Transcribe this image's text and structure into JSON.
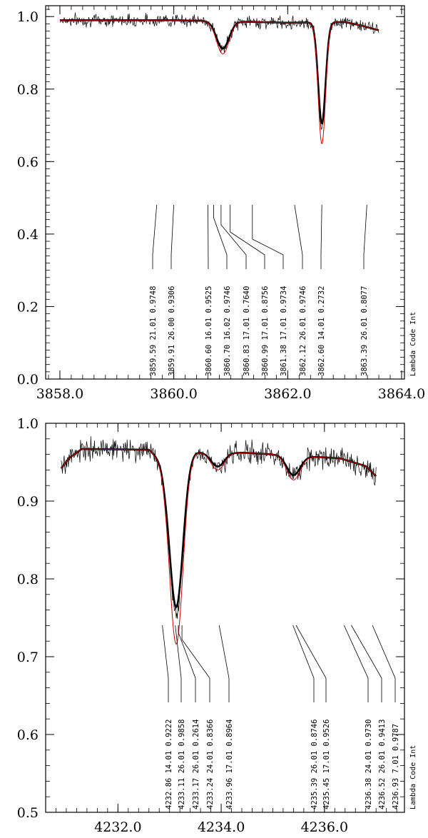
{
  "chart_data": [
    {
      "type": "line",
      "side_label": "Lambda Code Int",
      "xlim": [
        3857.75,
        3864.05
      ],
      "ylim": [
        0.0,
        1.03
      ],
      "xticks": [
        "3858.0",
        "3860.0",
        "3862.0",
        "3864.0"
      ],
      "yticks": [
        "0.0",
        "0.2",
        "0.4",
        "0.6",
        "0.8",
        "1.0"
      ],
      "x_range": [
        3858.0,
        3863.6
      ],
      "continuum": [
        [
          3858.0,
          0.99
        ],
        [
          3860.0,
          0.99
        ],
        [
          3862.0,
          0.983
        ],
        [
          3863.0,
          0.985
        ],
        [
          3863.3,
          0.975
        ],
        [
          3863.6,
          0.962
        ]
      ],
      "dips": [
        {
          "center": 3860.86,
          "depth": 0.075,
          "width": 0.11
        },
        {
          "center": 3862.6,
          "depth": 0.28,
          "width": 0.065
        }
      ],
      "series": [
        {
          "values_from": "dips",
          "depth_scale": 1.0
        },
        {
          "values_from": "dips",
          "depth_scale": 1.0
        },
        {
          "values_from": "dips",
          "depth_scale": 1.2
        }
      ],
      "line_labels": [
        {
          "x": 3859.7,
          "text": "3859.59  21.01  0.9748"
        },
        {
          "x": 3860.0,
          "text": "3859.91  26.00  0.9306"
        },
        {
          "x": 3860.6,
          "text": "3860.60  16.01  0.9525"
        },
        {
          "x": 3860.7,
          "text": "3860.70  16.02  0.9746"
        },
        {
          "x": 3860.83,
          "text": "3860.83  17.01  0.7640"
        },
        {
          "x": 3860.99,
          "text": "3860.99  17.01  0.8756"
        },
        {
          "x": 3861.38,
          "text": "3861.38  17.01  0.9734"
        },
        {
          "x": 3862.12,
          "text": "3862.12  26.01  0.9746"
        },
        {
          "x": 3862.6,
          "text": "3862.60  14.01  0.2732"
        },
        {
          "x": 3863.39,
          "text": "3863.39  26.01  0.8077"
        }
      ]
    },
    {
      "type": "line",
      "side_label": "Lambda Code Int",
      "xlim": [
        4230.6,
        4237.55
      ],
      "ylim": [
        0.5,
        1.0
      ],
      "xticks": [
        "4232.0",
        "4234.0",
        "4236.0"
      ],
      "yticks": [
        "0.5",
        "0.6",
        "0.7",
        "0.8",
        "0.9",
        "1.0"
      ],
      "x_range": [
        4230.9,
        4237.0
      ],
      "continuum": [
        [
          4230.9,
          0.942
        ],
        [
          4231.05,
          0.955
        ],
        [
          4231.3,
          0.967
        ],
        [
          4232.6,
          0.966
        ],
        [
          4232.9,
          0.948
        ],
        [
          4233.5,
          0.963
        ],
        [
          4234.5,
          0.962
        ],
        [
          4235.5,
          0.958
        ],
        [
          4236.3,
          0.955
        ],
        [
          4236.8,
          0.945
        ],
        [
          4237.0,
          0.932
        ]
      ],
      "dips": [
        {
          "center": 4233.13,
          "depth": 0.19,
          "width": 0.13
        },
        {
          "center": 4233.93,
          "depth": 0.018,
          "width": 0.13
        },
        {
          "center": 4235.4,
          "depth": 0.025,
          "width": 0.13
        }
      ],
      "series": [
        {
          "values_from": "dips",
          "depth_scale": 1.0
        },
        {
          "values_from": "dips",
          "depth_scale": 1.0
        },
        {
          "values_from": "dips",
          "depth_scale": 1.25
        }
      ],
      "line_labels": [
        {
          "x": 4232.86,
          "text": "4232.86  14.01  0.9222"
        },
        {
          "x": 4233.11,
          "text": "4233.11  26.01  0.9858"
        },
        {
          "x": 4233.17,
          "text": "4233.17  26.01  0.2614"
        },
        {
          "x": 4233.24,
          "text": "4233.24  24.01  0.8366"
        },
        {
          "x": 4233.96,
          "text": "4233.96  17.01  0.8964"
        },
        {
          "x": 4235.39,
          "text": "4235.39  26.01  0.8746"
        },
        {
          "x": 4235.45,
          "text": "4235.45  17.01  0.9526"
        },
        {
          "x": 4236.38,
          "text": "4236.38  24.01  0.9730"
        },
        {
          "x": 4236.52,
          "text": "4236.52  26.01  0.9413"
        },
        {
          "x": 4236.93,
          "text": "4236.93   7.01  0.9787"
        }
      ]
    }
  ],
  "colors": {
    "observed": "#000000",
    "model": "#000000",
    "model_alt": "#d00000",
    "marker": "#000000"
  }
}
